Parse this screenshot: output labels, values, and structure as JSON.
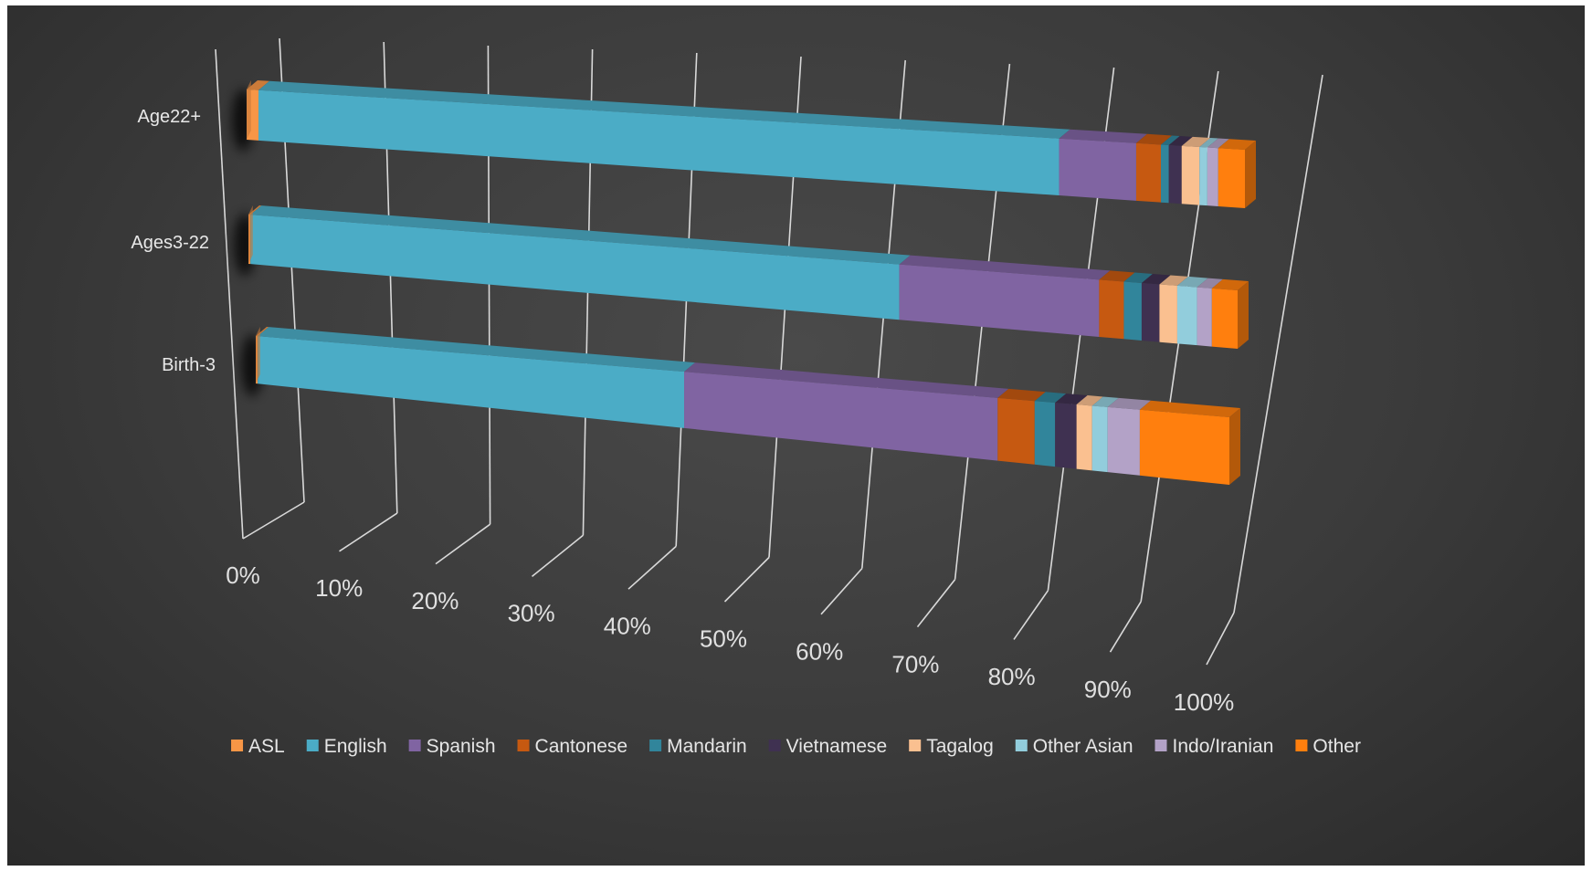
{
  "chart_data": {
    "type": "bar",
    "orientation": "horizontal",
    "stacked": "100%",
    "three_d": true,
    "title": "",
    "xlabel": "",
    "ylabel": "",
    "categories": [
      "Age22+",
      "Ages3-22",
      "Birth-3"
    ],
    "x_ticks": [
      "0%",
      "10%",
      "20%",
      "30%",
      "40%",
      "50%",
      "60%",
      "70%",
      "80%",
      "90%",
      "100%"
    ],
    "xlim": [
      0,
      100
    ],
    "grid": true,
    "legend_position": "bottom",
    "series": [
      {
        "name": "ASL",
        "color": "#f79646",
        "values": [
          1.2,
          0.2,
          0.2
        ]
      },
      {
        "name": "English",
        "color": "#4bacc6",
        "values": [
          81.0,
          65.6,
          43.8
        ]
      },
      {
        "name": "Spanish",
        "color": "#8064a2",
        "values": [
          7.8,
          20.2,
          32.2
        ]
      },
      {
        "name": "Cantonese",
        "color": "#c65911",
        "values": [
          2.5,
          2.5,
          3.8
        ]
      },
      {
        "name": "Mandarin",
        "color": "#31859b",
        "values": [
          0.8,
          1.8,
          2.1
        ]
      },
      {
        "name": "Vietnamese",
        "color": "#3f3151",
        "values": [
          1.3,
          1.8,
          2.2
        ]
      },
      {
        "name": "Tagalog",
        "color": "#fac090",
        "values": [
          1.8,
          1.8,
          1.6
        ]
      },
      {
        "name": "Other Asian",
        "color": "#92cddc",
        "values": [
          0.8,
          2.0,
          1.6
        ]
      },
      {
        "name": "Indo/Iranian",
        "color": "#b3a2c7",
        "values": [
          1.1,
          1.5,
          3.3
        ]
      },
      {
        "name": "Other",
        "color": "#ff7f0e",
        "values": [
          2.7,
          2.6,
          9.2
        ]
      }
    ]
  }
}
